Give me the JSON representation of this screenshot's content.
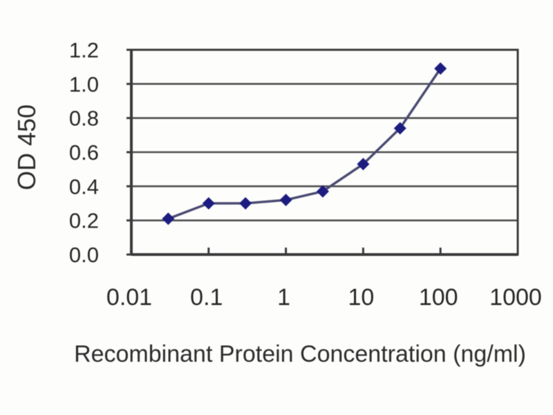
{
  "chart_data": {
    "type": "line",
    "xlabel": "Recombinant Protein Concentration (ng/ml)",
    "ylabel": "OD 450",
    "x_scale": "log",
    "xlim": [
      0.01,
      1000
    ],
    "ylim": [
      0,
      1.2
    ],
    "x_ticks": [
      0.01,
      0.1,
      1,
      10,
      100,
      1000
    ],
    "x_tick_labels": [
      "0.01",
      "0.1",
      "1",
      "10",
      "100",
      "1000"
    ],
    "y_ticks": [
      0.0,
      0.2,
      0.4,
      0.6,
      0.8,
      1.0,
      1.2
    ],
    "y_tick_labels": [
      "0.0",
      "0.2",
      "0.4",
      "0.6",
      "0.8",
      "1.0",
      "1.2"
    ],
    "grid": "horizontal",
    "legend": "none",
    "series": [
      {
        "name": "OD 450",
        "marker": "diamond",
        "x": [
          0.03,
          0.1,
          0.3,
          1,
          3,
          10,
          30,
          100
        ],
        "y": [
          0.21,
          0.3,
          0.3,
          0.32,
          0.37,
          0.53,
          0.74,
          1.09
        ]
      }
    ],
    "colors": {
      "line": "#4a4a72",
      "marker": "#1d1d80",
      "grid": "#4d4d4d",
      "axis": "#3a3a3a",
      "text": "#262626",
      "background": "#fdfdfc"
    }
  }
}
